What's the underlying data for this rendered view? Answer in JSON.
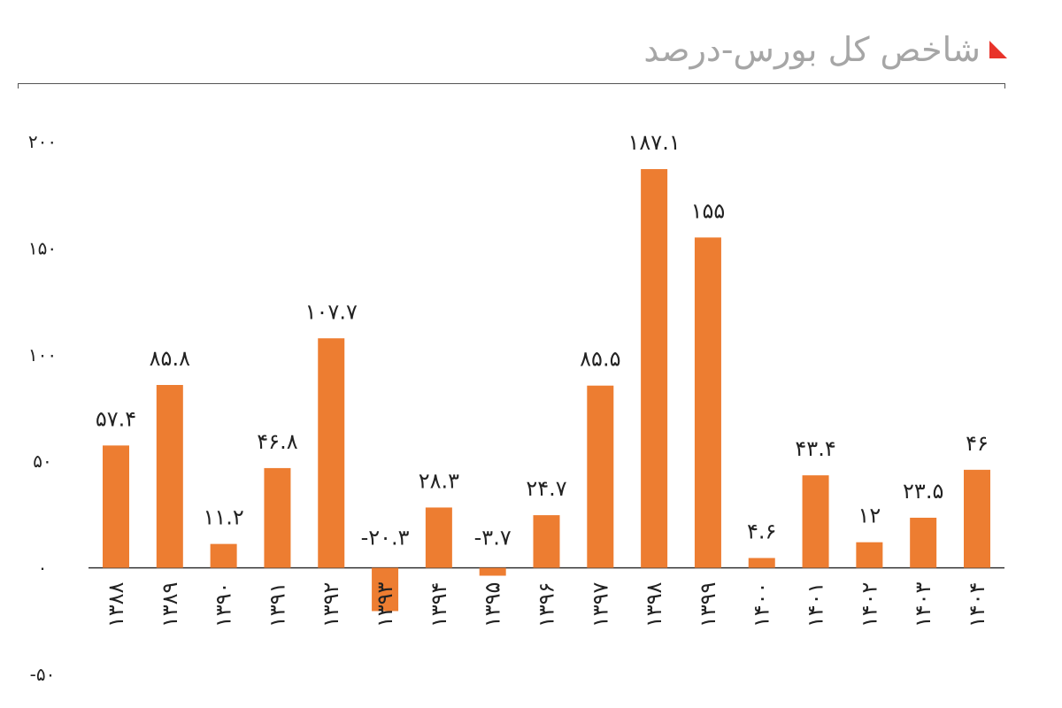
{
  "header": {
    "title": "شاخص کل بورس-درصد",
    "marker_icon": "red-triangle-icon",
    "accent_color": "#e8332a"
  },
  "chart_data": {
    "type": "bar",
    "title": "شاخص کل بورس-درصد",
    "bar_color": "#ed7d31",
    "categories": [
      "۱۳۸۸",
      "۱۳۸۹",
      "۱۳۹۰",
      "۱۳۹۱",
      "۱۳۹۲",
      "۱۳۹۳",
      "۱۳۹۴",
      "۱۳۹۵",
      "۱۳۹۶",
      "۱۳۹۷",
      "۱۳۹۸",
      "۱۳۹۹",
      "۱۴۰۰",
      "۱۴۰۱",
      "۱۴۰۲",
      "۱۴۰۳",
      "۱۴۰۴"
    ],
    "values": [
      57.4,
      85.8,
      11.2,
      46.8,
      107.7,
      -20.3,
      28.3,
      -3.7,
      24.7,
      85.5,
      187.1,
      155,
      4.6,
      43.4,
      12,
      23.5,
      46
    ],
    "data_labels": [
      "۵۷.۴",
      "۸۵.۸",
      "۱۱.۲",
      "۴۶.۸",
      "۱۰۷.۷",
      "-۲۰.۳",
      "۲۸.۳",
      "-۳.۷",
      "۲۴.۷",
      "۸۵.۵",
      "۱۸۷.۱",
      "۱۵۵",
      "۴.۶",
      "۴۳.۴",
      "۱۲",
      "۲۳.۵",
      "۴۶"
    ],
    "ylim": [
      -50,
      200
    ],
    "yticks": [
      200,
      150,
      100,
      50,
      0,
      -50
    ],
    "ytick_labels": [
      "۲۰۰",
      "۱۵۰",
      "۱۰۰",
      "۵۰",
      "۰",
      "-۵۰"
    ],
    "grid": false,
    "legend": "none"
  }
}
